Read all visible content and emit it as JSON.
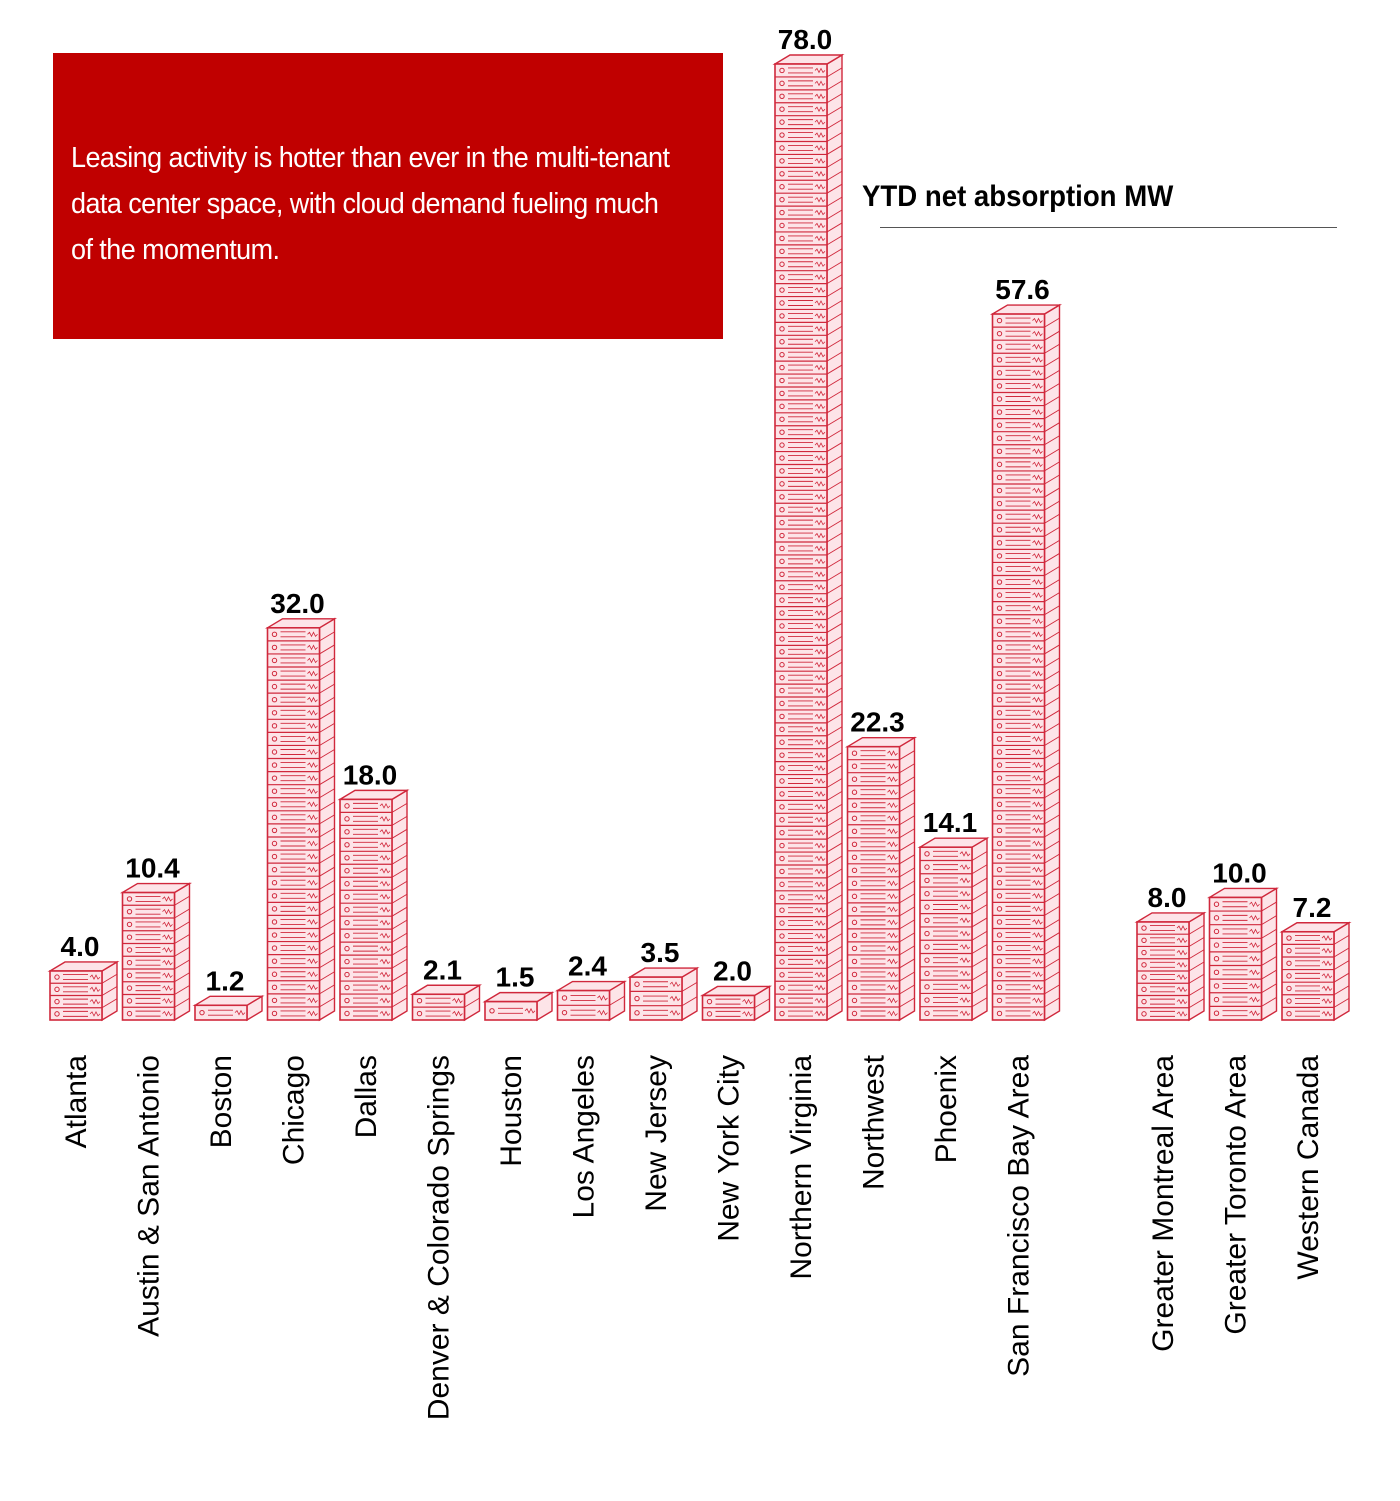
{
  "callout": {
    "text": "Leasing activity is hotter than ever in the multi-tenant data center space, with cloud demand fueling much of the momentum."
  },
  "chart_data": {
    "type": "bar",
    "title": "YTD net absorption MW",
    "categories": [
      "Atlanta",
      "Austin & San Antonio",
      "Boston",
      "Chicago",
      "Dallas",
      "Denver & Colorado Springs",
      "Houston",
      "Los Angeles",
      "New Jersey",
      "New York City",
      "Northern Virginia",
      "Northwest",
      "Phoenix",
      "San Francisco Bay Area",
      "Greater Montreal Area",
      "Greater Toronto Area",
      "Western Canada"
    ],
    "values": [
      4.0,
      10.4,
      1.2,
      32.0,
      18.0,
      2.1,
      1.5,
      2.4,
      3.5,
      2.0,
      78.0,
      22.3,
      14.1,
      57.6,
      8.0,
      10.0,
      7.2
    ],
    "value_labels": [
      "4.0",
      "10.4",
      "1.2",
      "32.0",
      "18.0",
      "2.1",
      "1.5",
      "2.4",
      "3.5",
      "2.0",
      "78.0",
      "22.3",
      "14.1",
      "57.6",
      "8.0",
      "10.0",
      "7.2"
    ],
    "groups": [
      {
        "categories": [
          "Atlanta",
          "Austin & San Antonio",
          "Boston",
          "Chicago",
          "Dallas",
          "Denver & Colorado Springs",
          "Houston",
          "Los Angeles",
          "New Jersey",
          "New York City",
          "Northern Virginia",
          "Northwest",
          "Phoenix",
          "San Francisco Bay Area"
        ]
      },
      {
        "categories": [
          "Greater Montreal Area",
          "Greater Toronto Area",
          "Western Canada"
        ]
      }
    ],
    "xlabel": "",
    "ylabel": "",
    "ylim": [
      0,
      78
    ],
    "grid": false,
    "legend": "none",
    "bar_style": "stacked-server-icons",
    "colors": {
      "face": "#fde4e8",
      "stroke": "#d0283c",
      "value_label": "#000000",
      "category_label": "#000000"
    }
  }
}
